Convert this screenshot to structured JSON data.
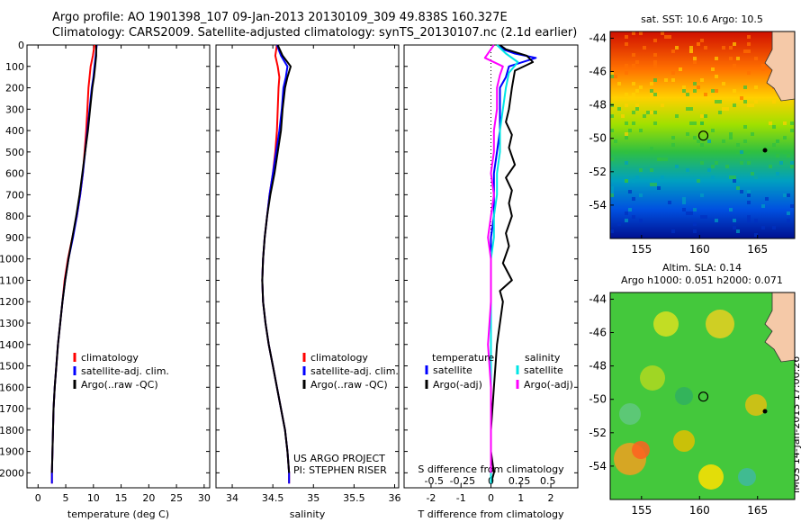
{
  "header": {
    "line1": "Argo profile: AO 1901398_107 09-Jan-2013 20130109_309 49.838S 160.327E",
    "line2": "Climatology: CARS2009. Satellite-adjusted climatology: synTS_20130107.nc (2.1d earlier)"
  },
  "stamp": "IMOS 14-Jan-2013 17:00:26",
  "colors": {
    "climatology": "#ff0000",
    "satellite": "#0000ff",
    "argo": "#000000",
    "sat_diff": "#00e5e5",
    "argo_sal_diff": "#ff00ff"
  },
  "chart_data": [
    {
      "type": "line",
      "panel": "temperature",
      "xlabel": "temperature (deg C)",
      "xlim": [
        -2,
        31
      ],
      "ylim": [
        2070,
        0
      ],
      "xticks": [
        "0",
        "5",
        "10",
        "15",
        "20",
        "25",
        "30"
      ],
      "yticks": [
        "0",
        "100",
        "200",
        "300",
        "400",
        "500",
        "600",
        "700",
        "800",
        "900",
        "1000",
        "1100",
        "1200",
        "1300",
        "1400",
        "1500",
        "1600",
        "1700",
        "1800",
        "1900",
        "2000"
      ],
      "legend": [
        "climatology",
        "satellite-adj. clim.",
        "Argo(..raw -QC)"
      ],
      "series": [
        {
          "name": "climatology",
          "color": "climatology",
          "x": [
            10.2,
            9.9,
            9.5,
            9.3,
            9.1,
            8.9,
            8.7,
            8.4,
            8.1,
            7.6,
            7.0,
            6.2,
            5.4,
            4.8,
            4.4,
            4.0,
            3.6,
            3.3,
            3.0,
            2.8,
            2.7,
            2.6,
            2.5,
            2.5
          ],
          "y": [
            0,
            50,
            100,
            150,
            200,
            300,
            400,
            500,
            600,
            700,
            800,
            900,
            1000,
            1100,
            1200,
            1300,
            1400,
            1500,
            1600,
            1700,
            1800,
            1900,
            2000,
            2050
          ]
        },
        {
          "name": "satellite-adj. clim.",
          "color": "satellite",
          "x": [
            10.6,
            10.4,
            10.2,
            10.0,
            9.7,
            9.3,
            8.9,
            8.5,
            8.1,
            7.6,
            7.0,
            6.3,
            5.5,
            4.9,
            4.4,
            4.0,
            3.6,
            3.3,
            3.0,
            2.8,
            2.7,
            2.6,
            2.5,
            2.5
          ],
          "y": [
            0,
            50,
            100,
            150,
            200,
            300,
            400,
            500,
            600,
            700,
            800,
            900,
            1000,
            1100,
            1200,
            1300,
            1400,
            1500,
            1600,
            1700,
            1800,
            1900,
            2000,
            2050
          ]
        },
        {
          "name": "Argo(..raw -QC)",
          "color": "argo",
          "x": [
            10.5,
            10.5,
            10.3,
            10.1,
            9.8,
            9.4,
            9.0,
            8.5,
            8.0,
            7.5,
            6.9,
            6.2,
            5.5,
            4.9,
            4.4,
            4.0,
            3.6,
            3.3,
            3.0,
            2.8,
            2.7,
            2.6,
            2.5
          ],
          "y": [
            0,
            50,
            100,
            150,
            200,
            300,
            400,
            500,
            600,
            700,
            800,
            900,
            1000,
            1100,
            1200,
            1300,
            1400,
            1500,
            1600,
            1700,
            1800,
            1900,
            2000
          ]
        }
      ]
    },
    {
      "type": "line",
      "panel": "salinity",
      "xlabel": "salinity",
      "xlim": [
        33.8,
        36.05
      ],
      "ylim": [
        2070,
        0
      ],
      "xticks": [
        "34",
        "34.5",
        "35",
        "35.5",
        "36"
      ],
      "legend": [
        "climatology",
        "satellite-adj. clim.",
        "Argo(..raw -QC)"
      ],
      "credit": [
        "US ARGO PROJECT",
        "PI: STEPHEN RISER"
      ],
      "series": [
        {
          "name": "climatology",
          "color": "climatology",
          "x": [
            34.55,
            34.53,
            34.56,
            34.58,
            34.57,
            34.56,
            34.55,
            34.53,
            34.5,
            34.46,
            34.43,
            34.4,
            34.38,
            34.37,
            34.38,
            34.41,
            34.45,
            34.5,
            34.55,
            34.6,
            34.65,
            34.68,
            34.7,
            34.7
          ],
          "y": [
            0,
            50,
            100,
            150,
            200,
            300,
            400,
            500,
            600,
            700,
            800,
            900,
            1000,
            1100,
            1200,
            1300,
            1400,
            1500,
            1600,
            1700,
            1800,
            1900,
            2000,
            2050
          ]
        },
        {
          "name": "satellite-adj. clim.",
          "color": "satellite",
          "x": [
            34.55,
            34.6,
            34.68,
            34.66,
            34.63,
            34.61,
            34.58,
            34.54,
            34.5,
            34.46,
            34.43,
            34.4,
            34.38,
            34.37,
            34.38,
            34.41,
            34.45,
            34.5,
            34.55,
            34.6,
            34.65,
            34.68,
            34.7,
            34.7
          ],
          "y": [
            0,
            50,
            100,
            150,
            200,
            300,
            400,
            500,
            600,
            700,
            800,
            900,
            1000,
            1100,
            1200,
            1300,
            1400,
            1500,
            1600,
            1700,
            1800,
            1900,
            2000,
            2050
          ]
        },
        {
          "name": "Argo(..raw -QC)",
          "color": "argo",
          "x": [
            34.56,
            34.62,
            34.72,
            34.68,
            34.65,
            34.62,
            34.6,
            34.56,
            34.52,
            34.47,
            34.43,
            34.4,
            34.38,
            34.37,
            34.38,
            34.41,
            34.45,
            34.5,
            34.55,
            34.6,
            34.65,
            34.68,
            34.7
          ],
          "y": [
            0,
            50,
            100,
            150,
            200,
            300,
            400,
            500,
            600,
            700,
            800,
            900,
            1000,
            1100,
            1200,
            1300,
            1400,
            1500,
            1600,
            1700,
            1800,
            1900,
            2000
          ]
        }
      ]
    },
    {
      "type": "line",
      "panel": "difference",
      "xlabel": "T difference from climatology",
      "xlabel_top": "S difference from climatology",
      "xlim": [
        -2.9,
        2.9
      ],
      "ylim": [
        2070,
        0
      ],
      "xticks_bottom": [
        "-2",
        "-1",
        "0",
        "1",
        "2"
      ],
      "xticks_bottom_values": [
        -2,
        -1,
        0,
        1,
        2
      ],
      "xticks_top": [
        "-0.5",
        "-0.25",
        "0",
        "0.25",
        "0.5"
      ],
      "xticks_top_values": [
        -1.9,
        -0.95,
        0,
        0.95,
        1.9
      ],
      "legend": {
        "temperature": [
          "satellite",
          "Argo(-adj)"
        ],
        "salinity": [
          "satellite",
          "Argo(-adj)"
        ],
        "headers": [
          "temperature",
          "salinity"
        ]
      },
      "series": [
        {
          "name": "temperature satellite",
          "color": "satellite",
          "x": [
            0.3,
            0.4,
            0.8,
            1.5,
            0.6,
            0.5,
            0.3,
            0.3,
            0.3,
            0.2,
            0.1,
            0.1,
            0.1,
            0.0,
            0.0,
            0.0,
            0.0,
            0.0,
            0.0,
            0.0,
            0.0,
            0.0,
            0.0
          ],
          "y": [
            0,
            20,
            40,
            60,
            100,
            150,
            200,
            300,
            400,
            500,
            600,
            700,
            800,
            900,
            1000,
            1200,
            1400,
            1600,
            1800,
            1900,
            2000,
            2030,
            2050
          ]
        },
        {
          "name": "temperature Argo(-adj)",
          "color": "argo",
          "x": [
            0.3,
            0.5,
            1.2,
            1.4,
            0.8,
            0.7,
            0.6,
            0.5,
            0.7,
            0.6,
            0.8,
            0.5,
            0.7,
            0.6,
            0.7,
            0.5,
            0.6,
            0.4,
            0.7,
            0.3,
            0.4,
            0.2,
            0.1,
            0.0,
            0.0,
            0.1,
            0.0
          ],
          "y": [
            0,
            20,
            50,
            80,
            120,
            200,
            300,
            360,
            420,
            480,
            560,
            620,
            680,
            740,
            800,
            880,
            940,
            1020,
            1100,
            1150,
            1200,
            1400,
            1600,
            1800,
            1900,
            2000,
            2050
          ]
        },
        {
          "name": "salinity satellite",
          "color": "sat_diff",
          "x": [
            0.2,
            0.5,
            0.9,
            0.6,
            0.5,
            0.4,
            0.3,
            0.3,
            0.2,
            0.2,
            0.1,
            0.1,
            0.0,
            0.0,
            0.0,
            0.0,
            0.0
          ],
          "y": [
            0,
            40,
            80,
            130,
            200,
            300,
            400,
            500,
            600,
            700,
            800,
            900,
            1000,
            1200,
            1600,
            1900,
            2050
          ]
        },
        {
          "name": "salinity Argo(-adj)",
          "color": "argo_sal_diff",
          "x": [
            0.1,
            -0.2,
            0.4,
            0.3,
            0.2,
            0.2,
            0.1,
            0.1,
            0.0,
            0.1,
            0.0,
            -0.1,
            0.0,
            0.0,
            -0.1,
            0.0,
            0.0,
            0.0
          ],
          "y": [
            0,
            60,
            100,
            140,
            200,
            300,
            400,
            500,
            600,
            700,
            800,
            900,
            1000,
            1200,
            1400,
            1600,
            1800,
            2000
          ]
        }
      ]
    },
    {
      "type": "heatmap",
      "panel": "sst_map",
      "title": "sat. SST: 10.6 Argo: 10.5",
      "xlim": [
        152.3,
        168.2
      ],
      "ylim": [
        -56,
        -43.6
      ],
      "xticks": [
        "155",
        "160",
        "165"
      ],
      "yticks": [
        "-44",
        "-46",
        "-48",
        "-50",
        "-52",
        "-54"
      ],
      "marker": {
        "lon": 160.327,
        "lat": -49.838
      }
    },
    {
      "type": "heatmap",
      "panel": "sla_map",
      "title": [
        "Altim. SLA: 0.14",
        "Argo h1000: 0.051 h2000: 0.071"
      ],
      "xlim": [
        152.3,
        168.2
      ],
      "ylim": [
        -56,
        -43.6
      ],
      "xticks": [
        "155",
        "160",
        "165"
      ],
      "yticks": [
        "-44",
        "-46",
        "-48",
        "-50",
        "-52",
        "-54"
      ],
      "marker": {
        "lon": 160.327,
        "lat": -49.838
      }
    }
  ]
}
